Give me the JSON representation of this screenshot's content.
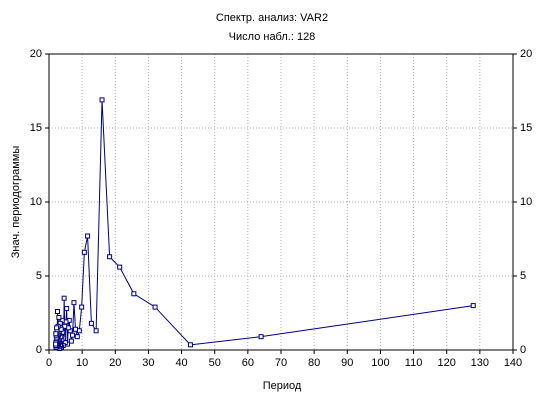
{
  "chart_data": {
    "type": "line",
    "title": "Спектр. анализ: VAR2",
    "subtitle": "Число набл.: 128",
    "x_label": "Период",
    "y_label": "Знач. периодограммы",
    "x": [
      128,
      64,
      42.67,
      32,
      25.6,
      21.33,
      18.29,
      16,
      14.22,
      12.8,
      11.64,
      10.67,
      9.85,
      9.14,
      8.53,
      8,
      7.53,
      7.11,
      6.74,
      6.4,
      6.1,
      5.82,
      5.57,
      5.33,
      5.12,
      4.92,
      4.74,
      4.57,
      4.41,
      4.27,
      4.13,
      4,
      3.88,
      3.76,
      3.66,
      3.56,
      3.46,
      3.37,
      3.28,
      3.2,
      3.12,
      3.05,
      2.98,
      2.91,
      2.84,
      2.78,
      2.72,
      2.67,
      2.61,
      2.56,
      2.51,
      2.46,
      2.42,
      2.37,
      2.33,
      2.29,
      2.25,
      2.21,
      2.17,
      2.13,
      2.1,
      2.06,
      2.03,
      2
    ],
    "series": [
      {
        "name": "VAR2",
        "color": "#000080",
        "values": [
          3.0,
          0.9,
          0.35,
          2.9,
          3.8,
          5.6,
          6.3,
          16.9,
          1.3,
          1.8,
          7.7,
          6.6,
          2.9,
          1.3,
          0.9,
          1.4,
          3.2,
          1.0,
          0.6,
          1.3,
          2.0,
          1.5,
          0.4,
          2.8,
          1.9,
          0.5,
          1.6,
          3.5,
          0.8,
          0.3,
          1.2,
          2.0,
          0.7,
          0.2,
          1.4,
          0.9,
          0.3,
          1.8,
          0.6,
          0.1,
          1.1,
          0.5,
          2.2,
          0.4,
          1.0,
          0.2,
          1.6,
          0.7,
          0.3,
          2.6,
          0.9,
          0.4,
          1.3,
          0.2,
          0.8,
          1.5,
          0.3,
          0.6,
          1.0,
          0.2,
          0.5,
          1.1,
          0.3,
          0.4
        ]
      }
    ],
    "xlim": [
      0,
      140
    ],
    "xticks": [
      0,
      10,
      20,
      30,
      40,
      50,
      60,
      70,
      80,
      90,
      100,
      110,
      120,
      130,
      140
    ],
    "ylim": [
      0,
      20
    ],
    "yticks": [
      0,
      5,
      10,
      15,
      20
    ],
    "grid": true
  }
}
